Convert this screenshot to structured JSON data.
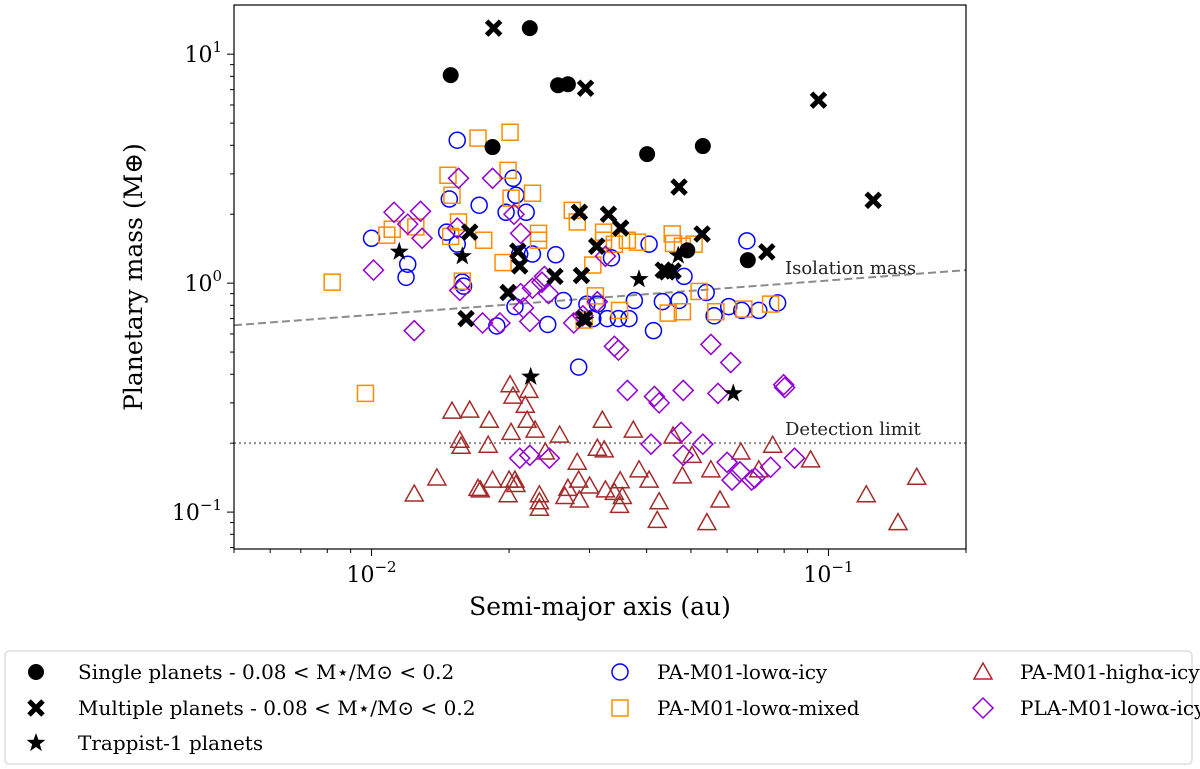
{
  "chart_data": {
    "type": "scatter",
    "xlabel": "Semi-major axis (au)",
    "ylabel": "Planetary mass (M⊕)",
    "xscale": "log",
    "yscale": "log",
    "xlim": [
      0.005,
      0.2
    ],
    "ylim": [
      0.069,
      16.4
    ],
    "x_ticks": [
      {
        "value": 0.01,
        "base": "10",
        "exp": "−2"
      },
      {
        "value": 0.1,
        "base": "10",
        "exp": "−1"
      }
    ],
    "y_ticks": [
      {
        "value": 0.1,
        "base": "10",
        "exp": "−1"
      },
      {
        "value": 1,
        "base": "10",
        "exp": "0"
      },
      {
        "value": 10,
        "base": "10",
        "exp": "1"
      }
    ],
    "grid": false,
    "legend_placement": "below",
    "lines": [
      {
        "label": "Isolation mass",
        "style": "dashed",
        "color": "#8c8c8c",
        "points": [
          [
            0.005,
            0.655
          ],
          [
            0.2,
            1.14
          ]
        ]
      },
      {
        "label": "Detection limit",
        "style": "dotted",
        "color": "#8c8c8c",
        "points": [
          [
            0.005,
            0.2
          ],
          [
            0.2,
            0.2
          ]
        ]
      }
    ],
    "series": [
      {
        "name": "Single planets - 0.08 < M⋆/M⊙ < 0.2",
        "marker": "circle-filled",
        "color": "#000000",
        "points": [
          [
            0.0149,
            8.1
          ],
          [
            0.0184,
            3.93
          ],
          [
            0.0222,
            13.0
          ],
          [
            0.0256,
            7.32
          ],
          [
            0.0269,
            7.39
          ],
          [
            0.0401,
            3.66
          ],
          [
            0.0531,
            3.97
          ],
          [
            0.0491,
            1.39
          ],
          [
            0.0666,
            1.26
          ]
        ]
      },
      {
        "name": "Multiple planets - 0.08 < M⋆/M⊙ < 0.2",
        "marker": "x-filled",
        "color": "#000000",
        "points": [
          [
            0.0185,
            13.0
          ],
          [
            0.0294,
            7.1
          ],
          [
            0.0951,
            6.3
          ],
          [
            0.1253,
            2.3
          ],
          [
            0.0471,
            2.63
          ],
          [
            0.0529,
            1.64
          ],
          [
            0.0733,
            1.37
          ],
          [
            0.0285,
            2.04
          ],
          [
            0.033,
            2.0
          ],
          [
            0.0351,
            1.74
          ],
          [
            0.0311,
            1.45
          ],
          [
            0.0252,
            1.07
          ],
          [
            0.0209,
            1.38
          ],
          [
            0.0211,
            1.19
          ],
          [
            0.0199,
            0.91
          ],
          [
            0.0164,
            1.67
          ],
          [
            0.0161,
            0.7
          ],
          [
            0.0292,
            0.7
          ],
          [
            0.0288,
            1.08
          ],
          [
            0.0443,
            1.12
          ],
          [
            0.0457,
            1.13
          ],
          [
            0.0435,
            1.14
          ]
        ]
      },
      {
        "name": "Trappist-1 planets",
        "marker": "star",
        "color": "#000000",
        "points": [
          [
            0.0115,
            1.37
          ],
          [
            0.0158,
            1.31
          ],
          [
            0.0223,
            0.39
          ],
          [
            0.0293,
            0.69
          ],
          [
            0.0385,
            1.04
          ],
          [
            0.0469,
            1.32
          ],
          [
            0.0619,
            0.33
          ]
        ]
      },
      {
        "name": "PA-M01-lowα-icy",
        "marker": "circle-open",
        "color": "#0000ff",
        "points": [
          [
            0.0154,
            4.21
          ],
          [
            0.0148,
            2.33
          ],
          [
            0.0204,
            2.87
          ],
          [
            0.0218,
            2.04
          ],
          [
            0.0146,
            1.67
          ],
          [
            0.0154,
            1.48
          ],
          [
            0.0172,
            2.19
          ],
          [
            0.01,
            1.57
          ],
          [
            0.012,
            1.21
          ],
          [
            0.0119,
            1.06
          ],
          [
            0.0158,
            1.01
          ],
          [
            0.0159,
            0.97
          ],
          [
            0.0188,
            0.65
          ],
          [
            0.0206,
            0.79
          ],
          [
            0.0211,
            1.34
          ],
          [
            0.0225,
            1.34
          ],
          [
            0.0243,
            0.66
          ],
          [
            0.0263,
            0.84
          ],
          [
            0.0253,
            1.33
          ],
          [
            0.0312,
            0.81
          ],
          [
            0.0328,
            0.7
          ],
          [
            0.0347,
            0.7
          ],
          [
            0.0376,
            0.84
          ],
          [
            0.0366,
            0.7
          ],
          [
            0.0405,
            1.48
          ],
          [
            0.0471,
            0.84
          ],
          [
            0.0483,
            1.07
          ],
          [
            0.054,
            0.91
          ],
          [
            0.0562,
            0.72
          ],
          [
            0.0605,
            0.79
          ],
          [
            0.0646,
            0.76
          ],
          [
            0.0704,
            0.76
          ],
          [
            0.0774,
            0.82
          ],
          [
            0.0663,
            1.53
          ],
          [
            0.0284,
            0.43
          ],
          [
            0.0197,
            2.04
          ],
          [
            0.0335,
            1.29
          ],
          [
            0.0414,
            0.62
          ],
          [
            0.0207,
            2.42
          ],
          [
            0.0305,
            0.7
          ],
          [
            0.0433,
            0.83
          ],
          [
            0.0296,
            0.81
          ]
        ]
      },
      {
        "name": "PA-M01-lowα-mixed",
        "marker": "square-open",
        "color": "#ff8c00",
        "points": [
          [
            0.0171,
            4.3
          ],
          [
            0.0201,
            4.56
          ],
          [
            0.0147,
            2.96
          ],
          [
            0.015,
            2.42
          ],
          [
            0.0199,
            3.11
          ],
          [
            0.0225,
            2.47
          ],
          [
            0.0275,
            2.08
          ],
          [
            0.0111,
            1.72
          ],
          [
            0.0108,
            1.62
          ],
          [
            0.0125,
            1.76
          ],
          [
            0.0149,
            1.6
          ],
          [
            0.0155,
            1.85
          ],
          [
            0.0176,
            1.54
          ],
          [
            0.0232,
            1.65
          ],
          [
            0.0232,
            1.54
          ],
          [
            0.0082,
            1.01
          ],
          [
            0.0097,
            0.33
          ],
          [
            0.0202,
            2.35
          ],
          [
            0.0282,
            1.85
          ],
          [
            0.0322,
            1.67
          ],
          [
            0.0322,
            1.54
          ],
          [
            0.034,
            1.48
          ],
          [
            0.0363,
            1.54
          ],
          [
            0.0455,
            1.64
          ],
          [
            0.0458,
            1.49
          ],
          [
            0.0479,
            1.45
          ],
          [
            0.0508,
            1.48
          ],
          [
            0.0521,
            0.92
          ],
          [
            0.0567,
            0.75
          ],
          [
            0.0653,
            0.77
          ],
          [
            0.0747,
            0.81
          ],
          [
            0.0292,
            0.69
          ],
          [
            0.0349,
            0.76
          ],
          [
            0.0446,
            0.74
          ],
          [
            0.0479,
            0.75
          ],
          [
            0.0194,
            1.23
          ],
          [
            0.0305,
            1.2
          ],
          [
            0.0158,
            1.02
          ],
          [
            0.0309,
            0.88
          ],
          [
            0.0382,
            1.51
          ]
        ]
      },
      {
        "name": "PA-M01-highα-icy",
        "marker": "triangle-open",
        "color": "#a52a2a",
        "points": [
          [
            0.0124,
            0.12
          ],
          [
            0.0139,
            0.141
          ],
          [
            0.015,
            0.276
          ],
          [
            0.0156,
            0.206
          ],
          [
            0.0157,
            0.194
          ],
          [
            0.0164,
            0.279
          ],
          [
            0.0171,
            0.127
          ],
          [
            0.0173,
            0.125
          ],
          [
            0.018,
            0.196
          ],
          [
            0.0181,
            0.252
          ],
          [
            0.0184,
            0.138
          ],
          [
            0.0199,
            0.119
          ],
          [
            0.02,
            0.138
          ],
          [
            0.0201,
            0.36
          ],
          [
            0.0202,
            0.223
          ],
          [
            0.0204,
            0.321
          ],
          [
            0.0206,
            0.138
          ],
          [
            0.0207,
            0.132
          ],
          [
            0.0217,
            0.293
          ],
          [
            0.0219,
            0.252
          ],
          [
            0.0221,
            0.34
          ],
          [
            0.0228,
            0.228
          ],
          [
            0.0233,
            0.119
          ],
          [
            0.0233,
            0.111
          ],
          [
            0.0233,
            0.104
          ],
          [
            0.024,
            0.183
          ],
          [
            0.0258,
            0.217
          ],
          [
            0.0265,
            0.117
          ],
          [
            0.0269,
            0.127
          ],
          [
            0.0282,
            0.165
          ],
          [
            0.0284,
            0.138
          ],
          [
            0.0285,
            0.113
          ],
          [
            0.03,
            0.13
          ],
          [
            0.0312,
            0.19
          ],
          [
            0.032,
            0.252
          ],
          [
            0.0323,
            0.187
          ],
          [
            0.0325,
            0.125
          ],
          [
            0.034,
            0.122
          ],
          [
            0.0349,
            0.107
          ],
          [
            0.035,
            0.137
          ],
          [
            0.0354,
            0.117
          ],
          [
            0.0374,
            0.228
          ],
          [
            0.0385,
            0.153
          ],
          [
            0.0405,
            0.138
          ],
          [
            0.0422,
            0.092
          ],
          [
            0.0426,
            0.111
          ],
          [
            0.0457,
            0.215
          ],
          [
            0.0479,
            0.144
          ],
          [
            0.0503,
            0.177
          ],
          [
            0.0542,
            0.09
          ],
          [
            0.0553,
            0.153
          ],
          [
            0.0579,
            0.113
          ],
          [
            0.0643,
            0.183
          ],
          [
            0.0704,
            0.153
          ],
          [
            0.0755,
            0.196
          ],
          [
            0.0914,
            0.169
          ],
          [
            0.121,
            0.119
          ],
          [
            0.142,
            0.09
          ],
          [
            0.156,
            0.142
          ]
        ]
      },
      {
        "name": "PLA-M01-lowα-icy",
        "marker": "diamond-open",
        "color": "#9400d3",
        "points": [
          [
            0.0155,
            2.87
          ],
          [
            0.0184,
            2.87
          ],
          [
            0.0112,
            2.04
          ],
          [
            0.0128,
            2.06
          ],
          [
            0.0129,
            1.57
          ],
          [
            0.012,
            1.81
          ],
          [
            0.0101,
            1.14
          ],
          [
            0.0124,
            0.62
          ],
          [
            0.0154,
            1.74
          ],
          [
            0.0156,
            0.93
          ],
          [
            0.0175,
            0.67
          ],
          [
            0.0191,
            0.67
          ],
          [
            0.0205,
            2.0
          ],
          [
            0.0212,
            1.65
          ],
          [
            0.0239,
            1.07
          ],
          [
            0.0244,
            0.9
          ],
          [
            0.0215,
            0.78
          ],
          [
            0.0222,
            0.68
          ],
          [
            0.0277,
            0.67
          ],
          [
            0.029,
            0.72
          ],
          [
            0.0312,
            0.83
          ],
          [
            0.0325,
            1.31
          ],
          [
            0.034,
            0.53
          ],
          [
            0.0347,
            0.51
          ],
          [
            0.0363,
            0.34
          ],
          [
            0.0416,
            0.32
          ],
          [
            0.0426,
            0.3
          ],
          [
            0.0481,
            0.34
          ],
          [
            0.0553,
            0.54
          ],
          [
            0.0611,
            0.45
          ],
          [
            0.0573,
            0.33
          ],
          [
            0.0798,
            0.36
          ],
          [
            0.0802,
            0.35
          ],
          [
            0.0225,
            0.95
          ],
          [
            0.0236,
            1.01
          ],
          [
            0.0212,
            0.9
          ],
          [
            0.0211,
            0.172
          ],
          [
            0.0222,
            0.177
          ],
          [
            0.0245,
            0.172
          ],
          [
            0.0409,
            0.198
          ],
          [
            0.0481,
            0.177
          ],
          [
            0.0531,
            0.198
          ],
          [
            0.0476,
            0.223
          ],
          [
            0.064,
            0.15
          ],
          [
            0.069,
            0.141
          ],
          [
            0.0747,
            0.157
          ],
          [
            0.0843,
            0.172
          ],
          [
            0.0679,
            0.138
          ],
          [
            0.0615,
            0.138
          ],
          [
            0.06,
            0.165
          ]
        ]
      }
    ]
  }
}
